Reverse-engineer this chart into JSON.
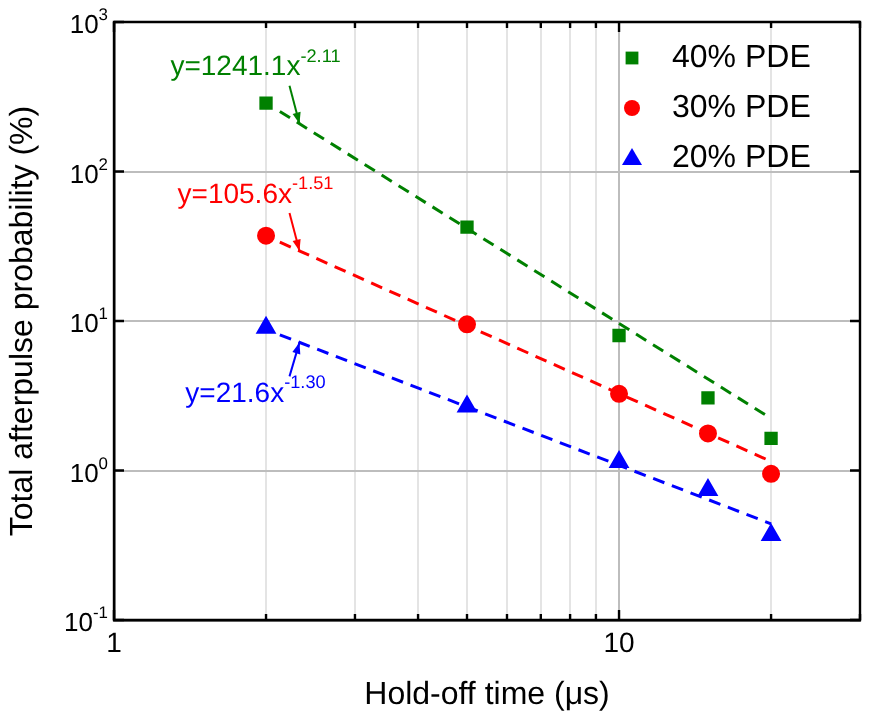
{
  "chart_data": {
    "type": "scatter",
    "xlabel": "Hold-off time (μs)",
    "ylabel": "Total afterpulse probability (%)",
    "log": "xy",
    "grid": true,
    "legend": "top right",
    "xlim": [
      1,
      30
    ],
    "ylim": [
      0.1,
      1000
    ],
    "xticks": [
      1,
      {
        "value": 2,
        "label": null
      },
      {
        "value": 3,
        "label": null
      },
      {
        "value": 4,
        "label": null
      },
      {
        "value": 5,
        "label": null
      },
      {
        "value": 6,
        "label": null
      },
      {
        "value": 7,
        "label": null
      },
      {
        "value": 8,
        "label": null
      },
      {
        "value": 9,
        "label": null
      },
      10,
      {
        "value": 20,
        "label": null
      },
      {
        "value": 30,
        "label": null
      }
    ],
    "yticks": [
      {
        "value": 0.1,
        "label": "10$^{-1}$"
      },
      {
        "value": 1,
        "label": "10$^{0}$"
      },
      {
        "value": 10,
        "label": "10$^{1}$"
      },
      {
        "value": 100,
        "label": "10$^{2}$"
      },
      {
        "value": 1000,
        "label": "10$^{3}$"
      }
    ],
    "series": [
      {
        "name": "40% PDE",
        "type": "scatter",
        "marker": "square",
        "color": "#008000",
        "x": [
          2,
          5,
          10,
          15,
          20
        ],
        "values": [
          287,
          42.5,
          8.0,
          3.06,
          1.64
        ]
      },
      {
        "name": "30% PDE",
        "type": "scatter",
        "marker": "circle",
        "color": "#ff0000",
        "x": [
          2,
          5,
          10,
          15,
          20
        ],
        "values": [
          37.2,
          9.5,
          3.26,
          1.77,
          0.95
        ]
      },
      {
        "name": "20% PDE",
        "type": "scatter",
        "marker": "triangle",
        "color": "#0000ff",
        "x": [
          2,
          5,
          10,
          15,
          20
        ],
        "values": [
          9.0,
          2.68,
          1.14,
          0.74,
          0.37
        ]
      },
      {
        "type": "line",
        "line_style": "dashed",
        "marker": "none",
        "color": "#008000",
        "x": [
          2.13,
          20
        ],
        "values": [
          252,
          2.23
        ]
      },
      {
        "type": "line",
        "line_style": "dashed",
        "marker": "none",
        "color": "#ff0000",
        "x": [
          2.13,
          20
        ],
        "values": [
          33.7,
          1.15
        ]
      },
      {
        "type": "line",
        "line_style": "dashed",
        "marker": "none",
        "color": "#0000ff",
        "x": [
          2.13,
          20
        ],
        "values": [
          8.08,
          0.44
        ]
      }
    ],
    "annotations": [
      "y=1241.1x$^{-2.11}$",
      "y=105.6x$^{-1.51}$",
      "y=21.6x$^{-1.30}$"
    ]
  }
}
